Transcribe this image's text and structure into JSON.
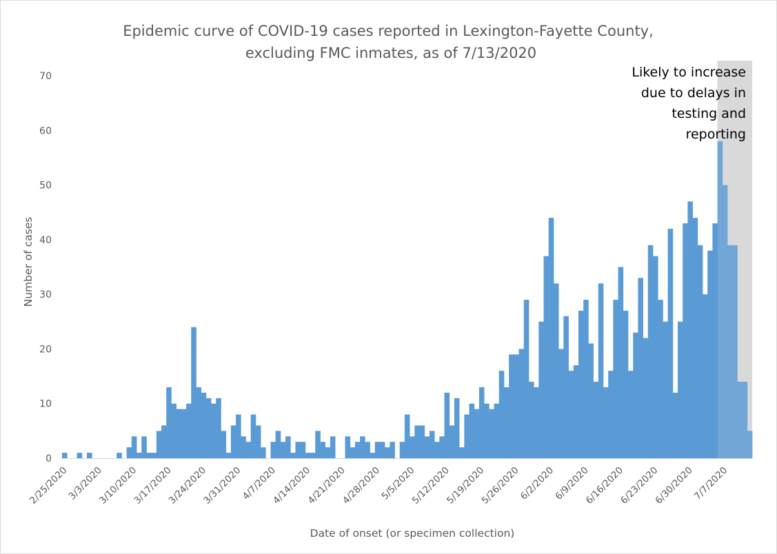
{
  "chart_data": {
    "type": "bar",
    "title": [
      "Epidemic curve of COVID-19 cases reported in Lexington-Fayette County,",
      "excluding FMC inmates, as of 7/13/2020"
    ],
    "xlabel": "Date of onset (or specimen collection)",
    "ylabel": "Number of cases",
    "ylim": [
      0,
      70
    ],
    "yticks": [
      0,
      10,
      20,
      30,
      40,
      50,
      60,
      70
    ],
    "grid": false,
    "legend": "none",
    "bar_color": "#5b9bd5",
    "x_start": "2/25/2020",
    "x_tick_labels": [
      "2/25/2020",
      "3/3/2020",
      "3/10/2020",
      "3/17/2020",
      "3/24/2020",
      "3/31/2020",
      "4/7/2020",
      "4/14/2020",
      "4/21/2020",
      "4/28/2020",
      "5/5/2020",
      "5/12/2020",
      "5/19/2020",
      "5/26/2020",
      "6/2/2020",
      "6/9/2020",
      "6/16/2020",
      "6/23/2020",
      "6/30/2020",
      "7/7/2020"
    ],
    "categories": [
      "2/25/2020",
      "2/26/2020",
      "2/27/2020",
      "2/28/2020",
      "2/29/2020",
      "3/1/2020",
      "3/2/2020",
      "3/3/2020",
      "3/4/2020",
      "3/5/2020",
      "3/6/2020",
      "3/7/2020",
      "3/8/2020",
      "3/9/2020",
      "3/10/2020",
      "3/11/2020",
      "3/12/2020",
      "3/13/2020",
      "3/14/2020",
      "3/15/2020",
      "3/16/2020",
      "3/17/2020",
      "3/18/2020",
      "3/19/2020",
      "3/20/2020",
      "3/21/2020",
      "3/22/2020",
      "3/23/2020",
      "3/24/2020",
      "3/25/2020",
      "3/26/2020",
      "3/27/2020",
      "3/28/2020",
      "3/29/2020",
      "3/30/2020",
      "3/31/2020",
      "4/1/2020",
      "4/2/2020",
      "4/3/2020",
      "4/4/2020",
      "4/5/2020",
      "4/6/2020",
      "4/7/2020",
      "4/8/2020",
      "4/9/2020",
      "4/10/2020",
      "4/11/2020",
      "4/12/2020",
      "4/13/2020",
      "4/14/2020",
      "4/15/2020",
      "4/16/2020",
      "4/17/2020",
      "4/18/2020",
      "4/19/2020",
      "4/20/2020",
      "4/21/2020",
      "4/22/2020",
      "4/23/2020",
      "4/24/2020",
      "4/25/2020",
      "4/26/2020",
      "4/27/2020",
      "4/28/2020",
      "4/29/2020",
      "4/30/2020",
      "5/1/2020",
      "5/2/2020",
      "5/3/2020",
      "5/4/2020",
      "5/5/2020",
      "5/6/2020",
      "5/7/2020",
      "5/8/2020",
      "5/9/2020",
      "5/10/2020",
      "5/11/2020",
      "5/12/2020",
      "5/13/2020",
      "5/14/2020",
      "5/15/2020",
      "5/16/2020",
      "5/17/2020",
      "5/18/2020",
      "5/19/2020",
      "5/20/2020",
      "5/21/2020",
      "5/22/2020",
      "5/23/2020",
      "5/24/2020",
      "5/25/2020",
      "5/26/2020",
      "5/27/2020",
      "5/28/2020",
      "5/29/2020",
      "5/30/2020",
      "5/31/2020",
      "6/1/2020",
      "6/2/2020",
      "6/3/2020",
      "6/4/2020",
      "6/5/2020",
      "6/6/2020",
      "6/7/2020",
      "6/8/2020",
      "6/9/2020",
      "6/10/2020",
      "6/11/2020",
      "6/12/2020",
      "6/13/2020",
      "6/14/2020",
      "6/15/2020",
      "6/16/2020",
      "6/17/2020",
      "6/18/2020",
      "6/19/2020",
      "6/20/2020",
      "6/21/2020",
      "6/22/2020",
      "6/23/2020",
      "6/24/2020",
      "6/25/2020",
      "6/26/2020",
      "6/27/2020",
      "6/28/2020",
      "6/29/2020",
      "6/30/2020",
      "7/1/2020",
      "7/2/2020",
      "7/3/2020",
      "7/4/2020",
      "7/5/2020",
      "7/6/2020",
      "7/7/2020",
      "7/8/2020",
      "7/9/2020",
      "7/10/2020",
      "7/11/2020",
      "7/12/2020"
    ],
    "values": [
      1,
      0,
      0,
      1,
      0,
      1,
      0,
      0,
      0,
      0,
      0,
      1,
      0,
      2,
      4,
      1,
      4,
      1,
      1,
      5,
      6,
      13,
      10,
      9,
      9,
      10,
      24,
      13,
      12,
      11,
      10,
      11,
      5,
      1,
      6,
      8,
      4,
      3,
      8,
      6,
      2,
      0,
      3,
      5,
      3,
      4,
      1,
      3,
      3,
      1,
      1,
      5,
      3,
      2,
      4,
      0,
      0,
      4,
      2,
      3,
      4,
      3,
      1,
      3,
      3,
      2,
      3,
      0,
      3,
      8,
      4,
      6,
      6,
      4,
      5,
      3,
      4,
      12,
      6,
      11,
      2,
      8,
      10,
      9,
      13,
      10,
      9,
      10,
      16,
      13,
      19,
      19,
      20,
      29,
      14,
      13,
      25,
      37,
      44,
      32,
      20,
      26,
      16,
      17,
      27,
      29,
      21,
      14,
      32,
      13,
      16,
      29,
      35,
      27,
      16,
      23,
      33,
      22,
      39,
      37,
      29,
      25,
      42,
      12,
      25,
      43,
      47,
      44,
      39,
      30,
      38,
      43,
      58,
      50,
      39,
      39,
      14,
      14,
      5
    ],
    "shaded_region": {
      "from": "7/6/2020",
      "to": "7/12/2020",
      "color": "#d9d9d9"
    },
    "annotation": [
      "Likely to increase",
      "due to delays in",
      "testing and",
      "reporting"
    ]
  }
}
